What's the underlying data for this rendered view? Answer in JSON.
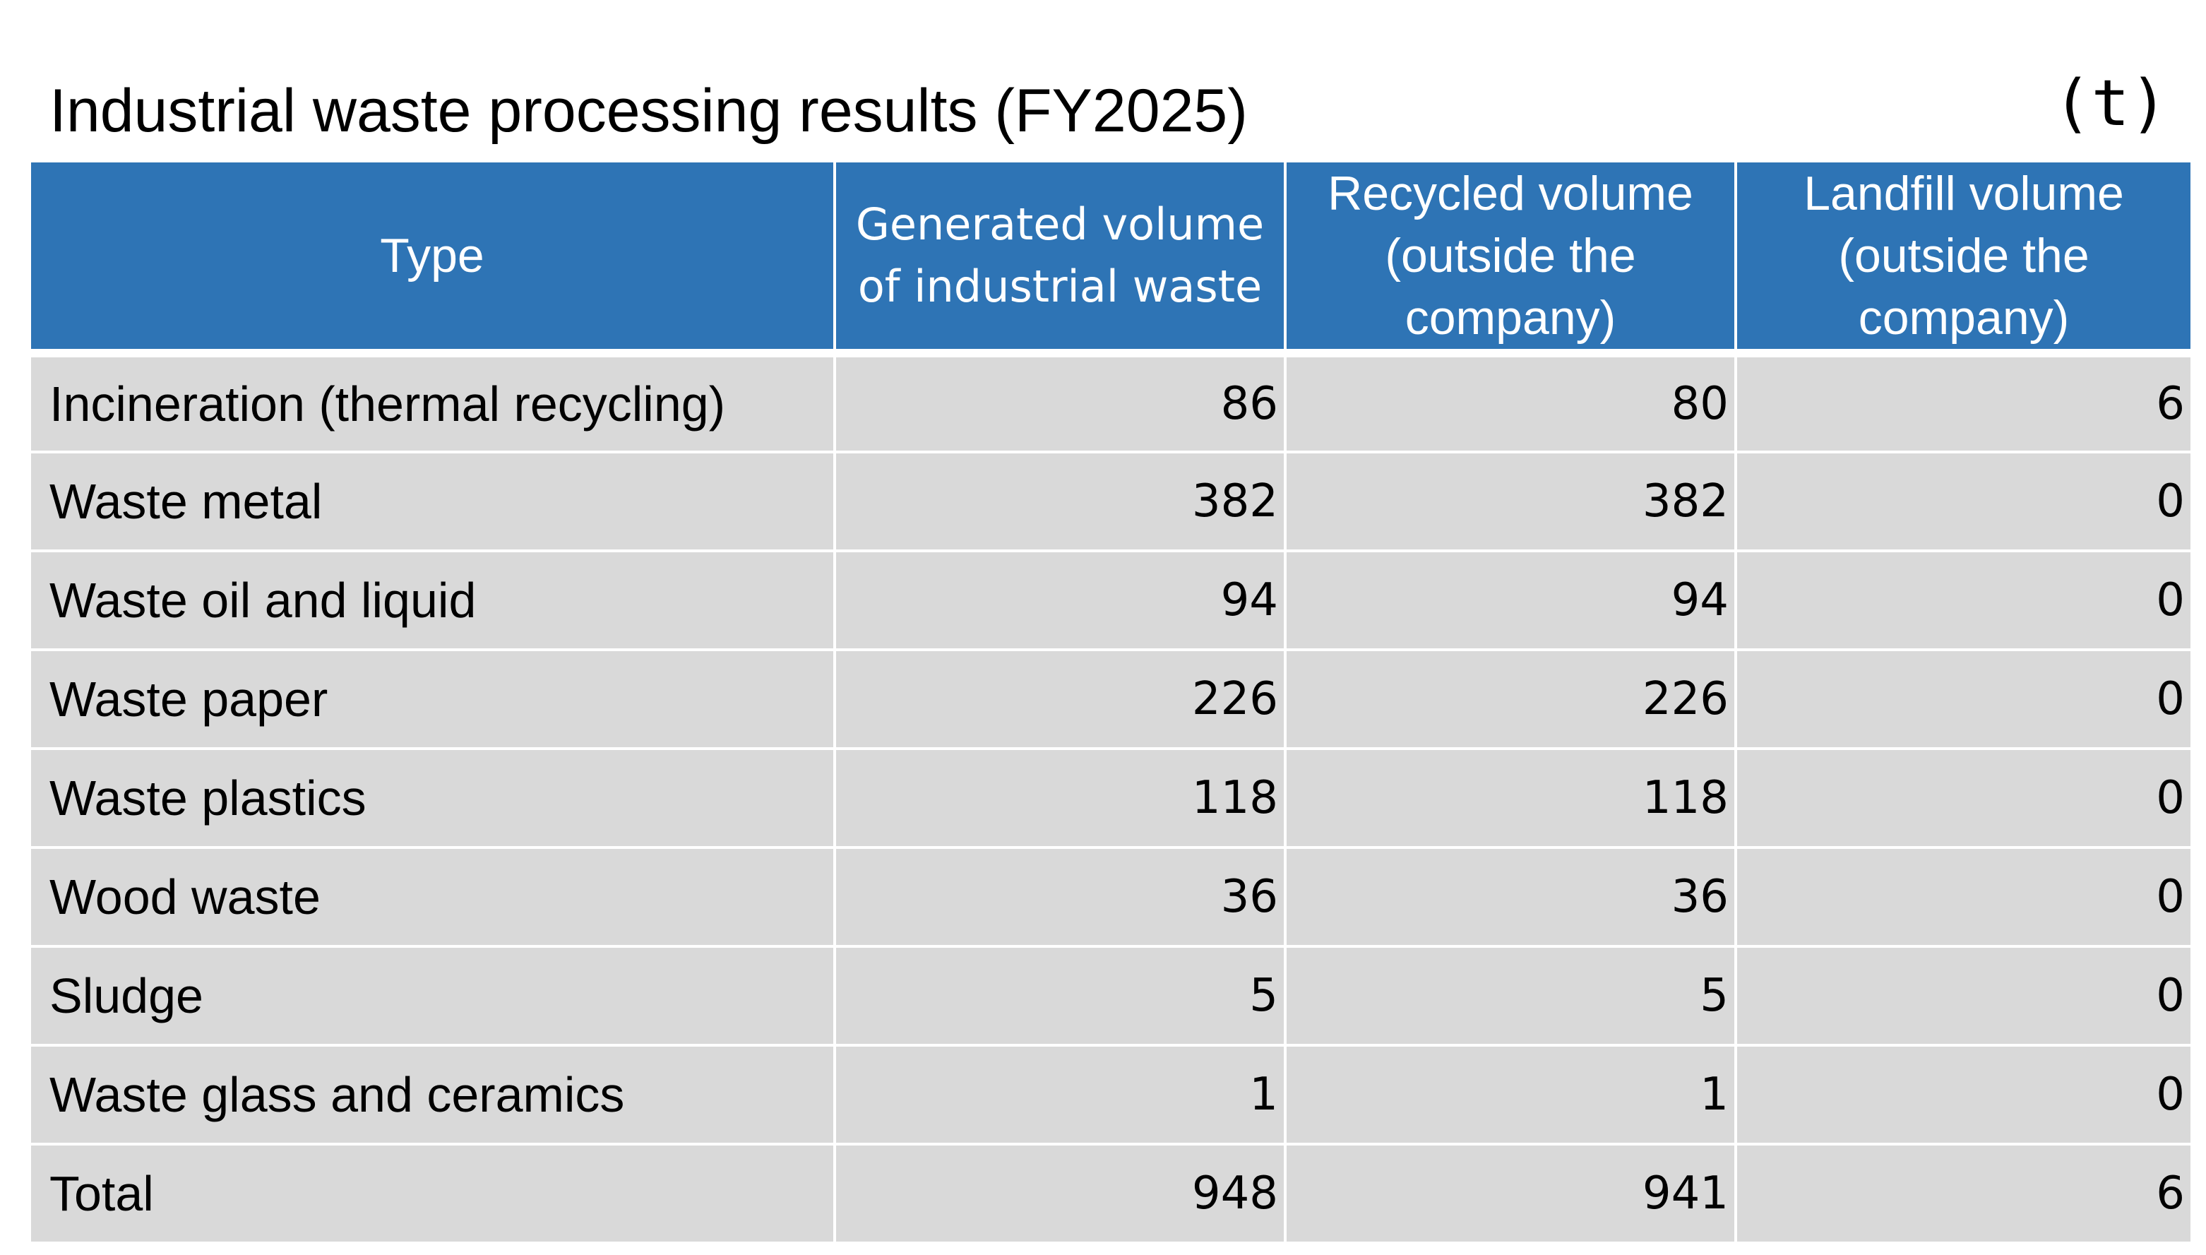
{
  "title": "Industrial waste processing results (FY2025)",
  "unit": "(t)",
  "chart_data": {
    "type": "table",
    "title": "Industrial waste processing results (FY2025)",
    "unit": "(t)",
    "columns": [
      "Type",
      "Generated volume of industrial waste",
      "Recycled volume (outside the company)",
      "Landfill volume (outside the company)"
    ],
    "rows": [
      {
        "type": "Incineration (thermal recycling)",
        "generated": "86",
        "recycled": "80",
        "landfill": "6"
      },
      {
        "type": "Waste metal",
        "generated": "382",
        "recycled": "382",
        "landfill": "0"
      },
      {
        "type": "Waste oil and liquid",
        "generated": "94",
        "recycled": "94",
        "landfill": "0"
      },
      {
        "type": "Waste paper",
        "generated": "226",
        "recycled": "226",
        "landfill": "0"
      },
      {
        "type": "Waste plastics",
        "generated": "118",
        "recycled": "118",
        "landfill": "0"
      },
      {
        "type": "Wood waste",
        "generated": "36",
        "recycled": "36",
        "landfill": "0"
      },
      {
        "type": "Sludge",
        "generated": "5",
        "recycled": "5",
        "landfill": "0"
      },
      {
        "type": "Waste glass and ceramics",
        "generated": "1",
        "recycled": "1",
        "landfill": "0"
      },
      {
        "type": "Total",
        "generated": "948",
        "recycled": "941",
        "landfill": "6"
      }
    ]
  },
  "colors": {
    "header_bg": "#2e74b5",
    "header_text": "#ffffff",
    "cell_bg": "#d9d9d9",
    "grid": "#ffffff"
  }
}
